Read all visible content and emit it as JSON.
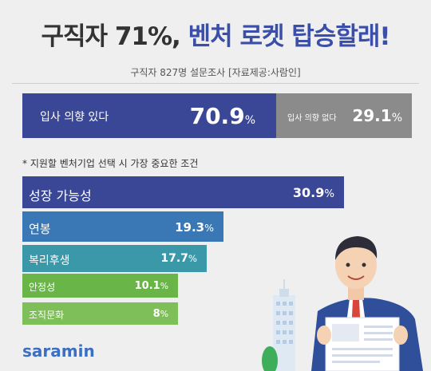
{
  "header": {
    "title_part1": "구직자 71%,",
    "title_part2": "벤처 로켓 탑승할래!",
    "subtitle": "구직자 827명 설문조사 [자료제공:사람인]"
  },
  "intent": {
    "yes_label": "입사 의향 있다",
    "yes_value": "70.9",
    "no_label": "입사 의향 없다",
    "no_value": "29.1",
    "unit": "%"
  },
  "note": "* 지원할 벤처기업 선택 시 가장 중요한 조건",
  "chart_data": {
    "type": "bar",
    "orientation": "horizontal",
    "title": "* 지원할 벤처기업 선택 시 가장 중요한 조건",
    "categories": [
      "성장 가능성",
      "연봉",
      "복리후생",
      "안정성",
      "조직문화"
    ],
    "values": [
      30.9,
      19.3,
      17.7,
      10.1,
      8
    ],
    "value_labels": [
      "30.9",
      "19.3",
      "17.7",
      "10.1",
      "8"
    ],
    "unit": "%",
    "colors": [
      "#3a4796",
      "#3a78b5",
      "#3b98a8",
      "#6ab548",
      "#7fbf5a"
    ],
    "xlim": [
      0,
      30.9
    ]
  },
  "logo": "saramin",
  "colors": {
    "background": "#efefef",
    "title_dark": "#333333",
    "title_accent": "#3b4fa8",
    "yes_block": "#3a4796",
    "no_block": "#8b8b8b",
    "logo": "#3a6fc4"
  }
}
